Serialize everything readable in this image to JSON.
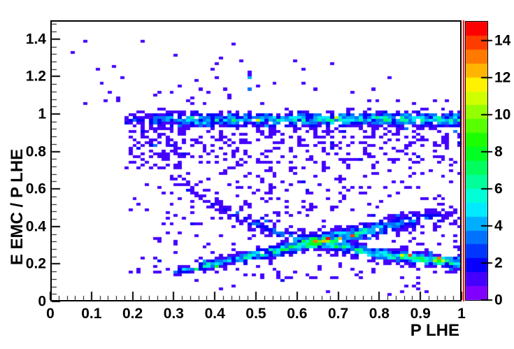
{
  "chart_data": {
    "type": "heatmap",
    "title": "",
    "xlabel": "P LHE",
    "ylabel": "E EMC / P LHE",
    "xlim": [
      0,
      1
    ],
    "ylim": [
      0,
      1.5
    ],
    "zlim": [
      0,
      15
    ],
    "nbins_x": 100,
    "nbins_y": 100,
    "grid": false,
    "legend": null,
    "x_ticks": {
      "values": [
        0,
        0.1,
        0.2,
        0.3,
        0.4,
        0.5,
        0.6,
        0.7,
        0.8,
        0.9,
        1
      ],
      "labels": [
        "0",
        "0.1",
        "0.2",
        "0.3",
        "0.4",
        "0.5",
        "0.6",
        "0.7",
        "0.8",
        "0.9",
        "1"
      ],
      "minor_step": 0.02
    },
    "y_ticks": {
      "values": [
        0,
        0.2,
        0.4,
        0.6,
        0.8,
        1,
        1.2,
        1.4
      ],
      "labels": [
        "0",
        "0.2",
        "0.4",
        "0.6",
        "0.8",
        "1",
        "1.2",
        "1.4"
      ],
      "minor_step": 0.04
    },
    "colorbar": {
      "min": 0,
      "max": 15,
      "steps": 20,
      "palette": "root-rainbow-violet-to-red",
      "bottom_color": "#7f00ff",
      "top_color": "#ff0000",
      "tick_values": [
        0,
        2,
        4,
        6,
        8,
        10,
        12,
        14
      ],
      "tick_labels": [
        "0",
        "2",
        "4",
        "6",
        "8",
        "10",
        "12",
        "14"
      ]
    },
    "edge_line_color": "#ff0000",
    "distribution_model": {
      "seed": 987241,
      "regions": [
        {
          "name": "far-left-sparse",
          "x0": 0.02,
          "x1": 0.18,
          "y0": 0.7,
          "y1": 1.38,
          "lam": 0.015
        },
        {
          "name": "left-mid",
          "x0": 0.18,
          "x1": 0.45,
          "y0": 0.15,
          "y1": 1.02,
          "lam": 0.05,
          "lam1": 0.13
        },
        {
          "name": "right-mid",
          "x0": 0.45,
          "x1": 1.0,
          "y0": 0.42,
          "y1": 0.95,
          "lam": 0.2,
          "lam1": 0.11
        },
        {
          "name": "right-low",
          "x0": 0.45,
          "x1": 1.0,
          "y0": 0.12,
          "y1": 0.42,
          "lam": 0.11,
          "lam1": 0.13
        },
        {
          "name": "bottom-sparse",
          "x0": 0.33,
          "x1": 1.0,
          "y0": 0.03,
          "y1": 0.12,
          "lam": 0.04
        },
        {
          "name": "top-scatter",
          "x0": 0.3,
          "x1": 1.0,
          "y0": 1.05,
          "y1": 1.5,
          "lam": 0.1,
          "lam1": 0.025,
          "fade": "y"
        },
        {
          "name": "top-left-sparse",
          "x0": 0.05,
          "x1": 0.3,
          "y0": 1.05,
          "y1": 1.4,
          "lam": 0.02
        },
        {
          "name": "halo-below-electron-band",
          "x0": 0.22,
          "x1": 1.0,
          "y0": 0.74,
          "y1": 0.94,
          "lam": 0.2
        },
        {
          "name": "left-cloud",
          "x0": 0.19,
          "x1": 0.33,
          "y0": 0.7,
          "y1": 0.97,
          "lam": 0.33
        }
      ],
      "bands": [
        {
          "name": "electron-band",
          "kind": "horizontal",
          "yc": 0.972,
          "x0": 0.18,
          "x1": 1.0,
          "sigma": [
            0.021,
            0.021
          ],
          "amp": [
            [
              0.18,
              1.0
            ],
            [
              0.24,
              2.2
            ],
            [
              0.32,
              3.4
            ],
            [
              0.45,
              3.9
            ],
            [
              0.6,
              4.3
            ],
            [
              0.8,
              4.7
            ],
            [
              1.0,
              5.1
            ]
          ]
        },
        {
          "name": "hadron-rising-band",
          "kind": "linear",
          "y_at": 0.165,
          "x_ref": 0.32,
          "slope": 0.47,
          "x0": 0.3,
          "x1": 0.97,
          "sigma": [
            0.011,
            0.03
          ],
          "amp": [
            [
              0.3,
              2.0
            ],
            [
              0.36,
              4.6
            ],
            [
              0.5,
              4.6
            ],
            [
              0.62,
              5.6
            ],
            [
              0.7,
              5.6
            ],
            [
              0.8,
              3.6
            ],
            [
              0.9,
              1.8
            ],
            [
              0.97,
              1.0
            ]
          ]
        },
        {
          "name": "mip-hyperbola-band",
          "kind": "hyperbola",
          "k": 0.205,
          "x0": 0.22,
          "x1": 1.0,
          "sigma": [
            0.024,
            0.017
          ],
          "amp": [
            [
              0.22,
              0.5
            ],
            [
              0.35,
              0.8
            ],
            [
              0.45,
              1.3
            ],
            [
              0.55,
              2.2
            ],
            [
              0.65,
              3.2
            ],
            [
              0.73,
              4.6
            ],
            [
              0.82,
              5.2
            ],
            [
              0.9,
              5.7
            ],
            [
              1.0,
              6.0
            ]
          ]
        }
      ],
      "hotspots": [
        {
          "x": 0.675,
          "y": 0.33,
          "count": 15
        },
        {
          "x": 0.731,
          "y": 0.357,
          "count": 14
        },
        {
          "x": 0.66,
          "y": 0.322,
          "count": 12
        },
        {
          "x": 0.7,
          "y": 0.341,
          "count": 12
        },
        {
          "x": 0.876,
          "y": 0.253,
          "count": 14
        },
        {
          "x": 0.945,
          "y": 0.234,
          "count": 13
        },
        {
          "x": 0.957,
          "y": 0.222,
          "count": 11
        },
        {
          "x": 0.932,
          "y": 0.219,
          "count": 10
        },
        {
          "x": 0.85,
          "y": 0.246,
          "count": 11
        },
        {
          "x": 0.69,
          "y": 0.979,
          "count": 11
        },
        {
          "x": 0.502,
          "y": 0.964,
          "count": 11
        },
        {
          "x": 0.404,
          "y": 0.184,
          "count": 8
        },
        {
          "x": 0.357,
          "y": 0.166,
          "count": 7
        },
        {
          "x": 0.485,
          "y": 1.186,
          "count": 4
        },
        {
          "x": 0.482,
          "y": 1.127,
          "count": 3
        }
      ]
    }
  }
}
